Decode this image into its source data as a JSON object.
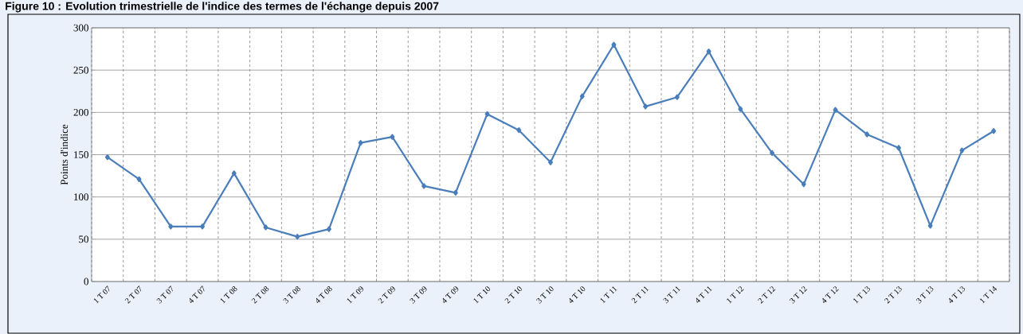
{
  "chart_data": {
    "type": "line",
    "title": "Figure 10 : Evolution trimestrielle de l'indice des termes de l'échange depuis 2007",
    "ylabel": "Points d'indice",
    "categories": [
      "1 T 07",
      "2 T 07",
      "3 T 07",
      "4 T 07",
      "1 T 08",
      "2 T 08",
      "3 T 08",
      "4 T 08",
      "1 T 09",
      "2 T 09",
      "3 T 09",
      "4 T 09",
      "1 T 10",
      "2 T 10",
      "3 T 10",
      "4 T 10",
      "1 T 11",
      "2 T 11",
      "3 T 11",
      "4 T 11",
      "1 T 12",
      "2 T 12",
      "3 T 12",
      "4 T 12",
      "1 T 13",
      "2 T 13",
      "3 T 13",
      "4 T 13",
      "1 T 14"
    ],
    "series": [
      {
        "color": "#4a7ebb",
        "values": [
          147,
          121,
          65,
          65,
          128,
          64,
          53,
          62,
          164,
          171,
          113,
          105,
          198,
          179,
          141,
          219,
          280,
          207,
          218,
          272,
          204,
          152,
          115,
          203,
          174,
          158,
          66,
          155,
          178
        ]
      }
    ],
    "ylim": [
      0,
      300
    ],
    "yticks": [
      0,
      50,
      100,
      150,
      200,
      250,
      300
    ],
    "grid": true,
    "marker": "diamond",
    "line_style": "solid"
  }
}
